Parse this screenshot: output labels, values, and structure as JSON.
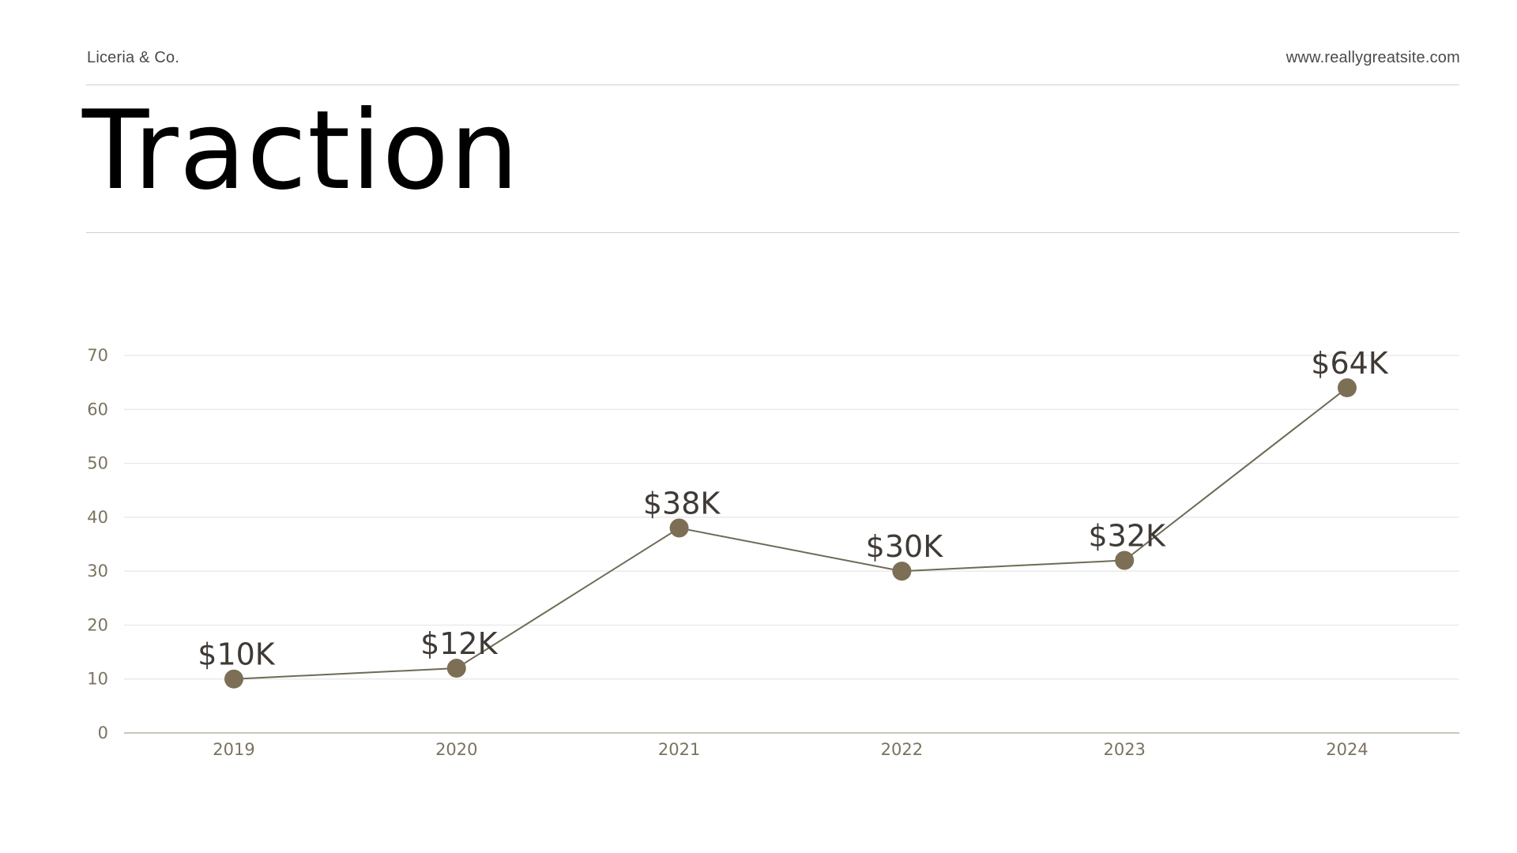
{
  "header": {
    "brand": "Liceria & Co.",
    "website": "www.reallygreatsite.com"
  },
  "page_title": "Traction",
  "colors": {
    "line": "#6e6a55",
    "marker": "#7d6f55",
    "label": "#3f3a36",
    "tick": "#7a7360",
    "grid": "#e6e6e6",
    "axis": "#b9b3a3"
  },
  "chart_data": {
    "type": "line",
    "title": "",
    "xlabel": "",
    "ylabel": "",
    "categories": [
      "2019",
      "2020",
      "2021",
      "2022",
      "2023",
      "2024"
    ],
    "values": [
      10,
      12,
      38,
      30,
      32,
      64
    ],
    "data_labels": [
      "$10K",
      "$12K",
      "$38K",
      "$30K",
      "$32K",
      "$64K"
    ],
    "ylim": [
      0,
      70
    ],
    "yticks": [
      "0",
      "10",
      "20",
      "30",
      "40",
      "50",
      "60",
      "70"
    ],
    "grid": true,
    "legend": "none"
  }
}
